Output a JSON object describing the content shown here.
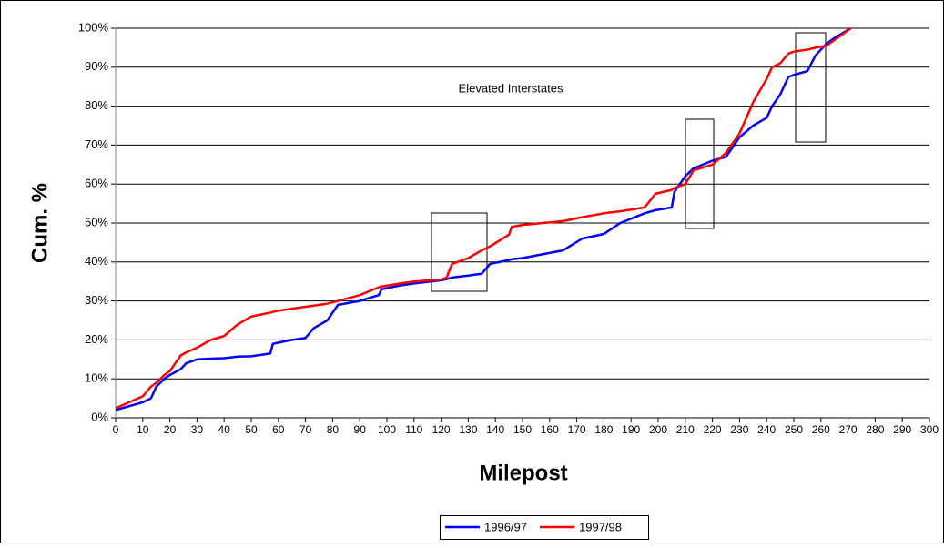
{
  "chart_data": {
    "type": "line",
    "annotation": "Elevated Interstates",
    "xlabel": "Milepost",
    "ylabel": "Cum. %",
    "x": [
      0,
      5,
      10,
      13,
      15,
      18,
      20,
      24,
      26,
      30,
      35,
      40,
      45,
      50,
      57,
      58,
      60,
      65,
      70,
      73,
      78,
      82,
      90,
      97,
      98,
      105,
      110,
      120,
      122,
      124,
      130,
      135,
      138,
      145,
      146,
      150,
      165,
      172,
      180,
      186,
      195,
      199,
      205,
      206,
      210,
      213,
      220,
      225,
      230,
      235,
      240,
      242,
      245,
      248,
      250,
      255,
      258,
      262,
      265,
      271
    ],
    "series": [
      {
        "name": "1996/97",
        "color": "#0000ff",
        "values": [
          2,
          3,
          4,
          5,
          8,
          10,
          11,
          12.5,
          14,
          15,
          15.2,
          15.3,
          15.7,
          15.8,
          16.5,
          19,
          19.3,
          20,
          20.5,
          23,
          25,
          29,
          30,
          31.5,
          33,
          34,
          34.5,
          35.3,
          35.6,
          36,
          36.5,
          37,
          39.5,
          40.5,
          40.7,
          41,
          43,
          46,
          47.2,
          50,
          52.5,
          53.3,
          54,
          58,
          62,
          64,
          66,
          67,
          72,
          75,
          77,
          80,
          83,
          87.5,
          88,
          89,
          93,
          96,
          97.5,
          100
        ]
      },
      {
        "name": "1997/98",
        "color": "#ff0000",
        "values": [
          2.5,
          4,
          5.5,
          8,
          9,
          11,
          12,
          16,
          16.8,
          18,
          20,
          21,
          24,
          26,
          27,
          27.2,
          27.5,
          28,
          28.5,
          28.8,
          29.3,
          30,
          31.5,
          33.5,
          33.7,
          34.5,
          35,
          35.5,
          36,
          39.5,
          41,
          43,
          44,
          47,
          49,
          49.5,
          50.5,
          51.5,
          52.5,
          53,
          54,
          57.5,
          58.5,
          59,
          60,
          63.5,
          65,
          68,
          73,
          81,
          87,
          90,
          91,
          93.5,
          94,
          94.5,
          95,
          95.5,
          97,
          100
        ]
      }
    ],
    "xlim": [
      0,
      300
    ],
    "xticks": [
      0,
      10,
      20,
      30,
      40,
      50,
      60,
      70,
      80,
      90,
      100,
      110,
      120,
      130,
      140,
      150,
      160,
      170,
      180,
      190,
      200,
      210,
      220,
      230,
      240,
      250,
      260,
      270,
      280,
      290,
      300
    ],
    "ylim": [
      0,
      100
    ],
    "yticks": [
      {
        "value": 0,
        "label": "0%"
      },
      {
        "value": 10,
        "label": "10%"
      },
      {
        "value": 20,
        "label": "20%"
      },
      {
        "value": 30,
        "label": "30%"
      },
      {
        "value": 40,
        "label": "40%"
      },
      {
        "value": 50,
        "label": "50%"
      },
      {
        "value": 60,
        "label": "60%"
      },
      {
        "value": 70,
        "label": "70%"
      },
      {
        "value": 80,
        "label": "80%"
      },
      {
        "value": 90,
        "label": "90%"
      },
      {
        "value": 100,
        "label": "100%"
      }
    ],
    "grid": true,
    "legend": "bottom"
  }
}
